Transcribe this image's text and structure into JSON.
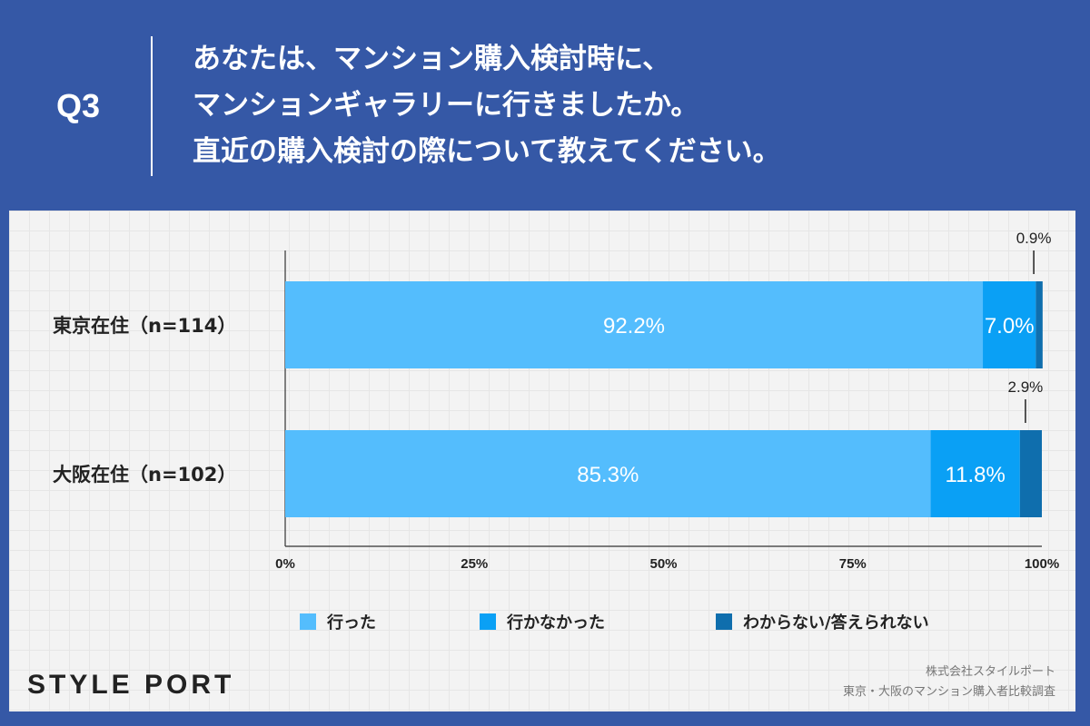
{
  "header": {
    "q_label": "Q3",
    "question_lines": [
      "あなたは、マンション購入検討時に、",
      "マンションギャラリーに行きましたか。",
      "直近の購入検討の際について教えてください。"
    ]
  },
  "chart_data": {
    "type": "bar",
    "orientation": "horizontal",
    "stacked": true,
    "categories": [
      "東京在住（n=114）",
      "大阪在住（n=102）"
    ],
    "series": [
      {
        "name": "行った",
        "color": "#54bdfd",
        "values": [
          92.2,
          85.3
        ],
        "labels": [
          "92.2%",
          "85.3%"
        ]
      },
      {
        "name": "行かなかった",
        "color": "#0aa0f5",
        "values": [
          7.0,
          11.8
        ],
        "labels": [
          "7.0%",
          "11.8%"
        ]
      },
      {
        "name": "わからない/答えられない",
        "color": "#0f6ead",
        "values": [
          0.9,
          2.9
        ],
        "labels": [
          "0.9%",
          "2.9%"
        ]
      }
    ],
    "xlim": [
      0,
      100
    ],
    "xticks": [
      "0%",
      "25%",
      "50%",
      "75%",
      "100%"
    ],
    "legend_position": "bottom"
  },
  "footer": {
    "logo": "STYLE PORT",
    "source_lines": [
      "株式会社スタイルポート",
      "東京・大阪のマンション購入者比較調査"
    ]
  }
}
